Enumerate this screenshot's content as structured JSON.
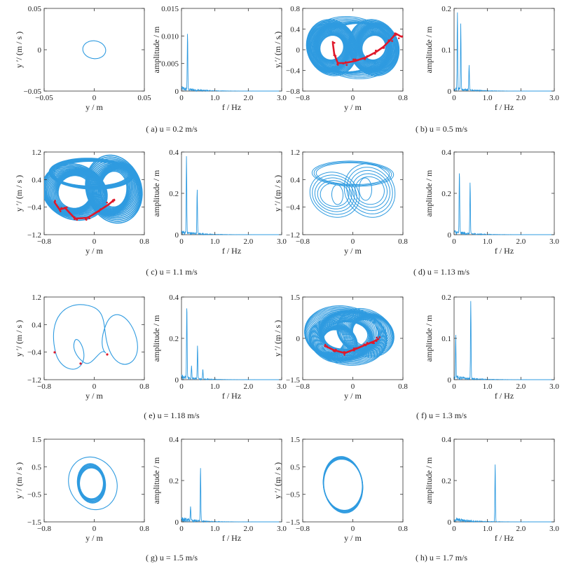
{
  "colors": {
    "trajectory": "#2f9be0",
    "section": "#e0182a",
    "axis": "#333333"
  },
  "phase_axis_labels": {
    "x": "y / m",
    "y": "y ′/ (m / s )"
  },
  "spectrum_axis_labels": {
    "x": "f / Hz",
    "y": "amplitude / m"
  },
  "panels": [
    {
      "id": "a",
      "caption": "( a)  u  =  0.2 m/s",
      "phase": {
        "xlim": [
          -0.05,
          0.05
        ],
        "ylim": [
          -0.05,
          0.05
        ],
        "xticks": [
          "−0.05",
          "0",
          "0.05"
        ],
        "yticks": [
          "0.05",
          "0",
          "−0.05"
        ]
      },
      "spectrum": {
        "xlim": [
          0,
          3
        ],
        "ylim": [
          0,
          0.015
        ],
        "xticks": [
          "0",
          "1.0",
          "2.0",
          "3.0"
        ],
        "yticks": [
          "0.015",
          "0.010",
          "0.005",
          "0"
        ]
      }
    },
    {
      "id": "b",
      "caption": "( b)  u  =  0.5 m/s",
      "phase": {
        "xlim": [
          -0.8,
          0.8
        ],
        "ylim": [
          -0.8,
          0.8
        ],
        "xticks": [
          "−0.8",
          "0",
          "0.8"
        ],
        "yticks": [
          "0.8",
          "0.4",
          "0",
          "−0.4",
          "−0.8"
        ]
      },
      "spectrum": {
        "xlim": [
          0,
          3
        ],
        "ylim": [
          0,
          0.2
        ],
        "xticks": [
          "0",
          "1.0",
          "2.0",
          "3.0"
        ],
        "yticks": [
          "0.2",
          "0.1",
          "0"
        ]
      }
    },
    {
      "id": "c",
      "caption": "( c)  u  =  1.1 m/s",
      "phase": {
        "xlim": [
          -0.8,
          0.8
        ],
        "ylim": [
          -1.2,
          1.2
        ],
        "xticks": [
          "−0.8",
          "0",
          "0.8"
        ],
        "yticks": [
          "1.2",
          "0.4",
          "−0.4",
          "−1.2"
        ]
      },
      "spectrum": {
        "xlim": [
          0,
          3
        ],
        "ylim": [
          0,
          0.4
        ],
        "xticks": [
          "0",
          "1.0",
          "2.0",
          "3.0"
        ],
        "yticks": [
          "0.4",
          "0.2",
          "0"
        ]
      }
    },
    {
      "id": "d",
      "caption": "( d)  u  =  1.13 m/s",
      "phase": {
        "xlim": [
          -0.8,
          0.8
        ],
        "ylim": [
          -1.2,
          1.2
        ],
        "xticks": [
          "−0.8",
          "0",
          "0.8"
        ],
        "yticks": [
          "1.2",
          "0.4",
          "−0.4",
          "−1.2"
        ]
      },
      "spectrum": {
        "xlim": [
          0,
          3
        ],
        "ylim": [
          0,
          0.4
        ],
        "xticks": [
          "0",
          "1.0",
          "2.0",
          "3.0"
        ],
        "yticks": [
          "0.4",
          "0.2",
          "0"
        ]
      }
    },
    {
      "id": "e",
      "caption": "( e)  u  =  1.18 m/s",
      "phase": {
        "xlim": [
          -0.8,
          0.8
        ],
        "ylim": [
          -1.2,
          1.2
        ],
        "xticks": [
          "−0.8",
          "0",
          "0.8"
        ],
        "yticks": [
          "1.2",
          "0.4",
          "−0.4",
          "−1.2"
        ]
      },
      "spectrum": {
        "xlim": [
          0,
          3
        ],
        "ylim": [
          0,
          0.4
        ],
        "xticks": [
          "0",
          "1.0",
          "2.0",
          "3.0"
        ],
        "yticks": [
          "0.4",
          "0.2",
          "0"
        ]
      }
    },
    {
      "id": "f",
      "caption": "( f)  u  =  1.3 m/s",
      "phase": {
        "xlim": [
          -0.8,
          0.8
        ],
        "ylim": [
          -1.5,
          1.5
        ],
        "xticks": [
          "−0.8",
          "0",
          "0.8"
        ],
        "yticks": [
          "1.5",
          "0",
          "−1.5"
        ]
      },
      "spectrum": {
        "xlim": [
          0,
          3
        ],
        "ylim": [
          0,
          0.2
        ],
        "xticks": [
          "0",
          "1.0",
          "2.0",
          "3.0"
        ],
        "yticks": [
          "0.2",
          "0.1",
          "0"
        ]
      }
    },
    {
      "id": "g",
      "caption": "( g)  u  =  1.5 m/s",
      "phase": {
        "xlim": [
          -0.8,
          0.8
        ],
        "ylim": [
          -1.5,
          1.5
        ],
        "xticks": [
          "−0.8",
          "0",
          "0.8"
        ],
        "yticks": [
          "1.5",
          "0.5",
          "−0.5",
          "−1.5"
        ]
      },
      "spectrum": {
        "xlim": [
          0,
          3
        ],
        "ylim": [
          0,
          0.4
        ],
        "xticks": [
          "0",
          "1.0",
          "2.0",
          "3.0"
        ],
        "yticks": [
          "0.4",
          "0.2",
          "0"
        ]
      }
    },
    {
      "id": "h",
      "caption": "( h)  u  =  1.7 m/s",
      "phase": {
        "xlim": [
          -0.8,
          0.8
        ],
        "ylim": [
          -1.5,
          1.5
        ],
        "xticks": [
          "−0.8",
          "0",
          "0.8"
        ],
        "yticks": [
          "1.5",
          "0.5",
          "−0.5",
          "−1.5"
        ]
      },
      "spectrum": {
        "xlim": [
          0,
          3
        ],
        "ylim": [
          0,
          0.4
        ],
        "xticks": [
          "0",
          "1.0",
          "2.0",
          "3.0"
        ],
        "yticks": [
          "0.4",
          "0.2",
          "0"
        ]
      }
    }
  ],
  "chart_data": [
    {
      "type": "line",
      "panel": "a-phase",
      "xlim": [
        -0.05,
        0.05
      ],
      "ylim": [
        -0.05,
        0.05
      ],
      "grid": false,
      "xlabel": "y / m",
      "ylabel": "y ′/ (m / s )",
      "series": [
        {
          "kind": "limit-cycle",
          "x": [
            0.013,
            0,
            -0.013,
            0,
            0.013
          ],
          "y": [
            0,
            0.009,
            0,
            -0.009,
            0
          ]
        }
      ]
    },
    {
      "type": "line",
      "panel": "a-spectrum",
      "xlim": [
        0,
        3
      ],
      "ylim": [
        0,
        0.015
      ],
      "grid": false,
      "xlabel": "f / Hz",
      "ylabel": "amplitude / m",
      "peaks": [
        {
          "x": 0.18,
          "y": 0.0103
        }
      ]
    },
    {
      "type": "scatter",
      "panel": "b-phase",
      "xlim": [
        -0.8,
        0.8
      ],
      "ylim": [
        -0.8,
        0.8
      ],
      "grid": false,
      "xlabel": "y / m",
      "ylabel": "y ′/ (m / s )",
      "attractor": "chaotic double-well"
    },
    {
      "type": "line",
      "panel": "b-spectrum",
      "xlim": [
        0,
        3
      ],
      "ylim": [
        0,
        0.2
      ],
      "grid": false,
      "xlabel": "f / Hz",
      "ylabel": "amplitude / m",
      "peaks": [
        {
          "x": 0.1,
          "y": 0.19
        },
        {
          "x": 0.2,
          "y": 0.16
        },
        {
          "x": 0.45,
          "y": 0.06
        }
      ]
    },
    {
      "type": "scatter",
      "panel": "c-phase",
      "xlim": [
        -0.8,
        0.8
      ],
      "ylim": [
        -1.2,
        1.2
      ],
      "grid": false,
      "xlabel": "y / m",
      "ylabel": "y ′/ (m / s )",
      "attractor": "chaotic"
    },
    {
      "type": "line",
      "panel": "c-spectrum",
      "xlim": [
        0,
        3
      ],
      "ylim": [
        0,
        0.4
      ],
      "grid": false,
      "xlabel": "f / Hz",
      "ylabel": "amplitude / m",
      "peaks": [
        {
          "x": 0.15,
          "y": 0.37
        },
        {
          "x": 0.47,
          "y": 0.22
        }
      ]
    },
    {
      "type": "line",
      "panel": "d-phase",
      "xlim": [
        -0.8,
        0.8
      ],
      "ylim": [
        -1.2,
        1.2
      ],
      "grid": false,
      "xlabel": "y / m",
      "ylabel": "y ′/ (m / s )",
      "attractor": "periodic multi-loop"
    },
    {
      "type": "line",
      "panel": "d-spectrum",
      "xlim": [
        0,
        3
      ],
      "ylim": [
        0,
        0.4
      ],
      "grid": false,
      "xlabel": "f / Hz",
      "ylabel": "amplitude / m",
      "peaks": [
        {
          "x": 0.16,
          "y": 0.3
        },
        {
          "x": 0.48,
          "y": 0.25
        }
      ]
    },
    {
      "type": "line",
      "panel": "e-phase",
      "xlim": [
        -0.8,
        0.8
      ],
      "ylim": [
        -1.2,
        1.2
      ],
      "grid": false,
      "xlabel": "y / m",
      "ylabel": "y ′/ (m / s )",
      "attractor": "periodic"
    },
    {
      "type": "line",
      "panel": "e-spectrum",
      "xlim": [
        0,
        3
      ],
      "ylim": [
        0,
        0.4
      ],
      "grid": false,
      "xlabel": "f / Hz",
      "ylabel": "amplitude / m",
      "peaks": [
        {
          "x": 0.16,
          "y": 0.36
        },
        {
          "x": 0.48,
          "y": 0.16
        },
        {
          "x": 0.3,
          "y": 0.06
        },
        {
          "x": 0.64,
          "y": 0.05
        }
      ]
    },
    {
      "type": "scatter",
      "panel": "f-phase",
      "xlim": [
        -0.8,
        0.8
      ],
      "ylim": [
        -1.5,
        1.5
      ],
      "grid": false,
      "xlabel": "y / m",
      "ylabel": "y ′/ (m / s )",
      "attractor": "chaotic"
    },
    {
      "type": "line",
      "panel": "f-spectrum",
      "xlim": [
        0,
        3
      ],
      "ylim": [
        0,
        0.2
      ],
      "grid": false,
      "xlabel": "f / Hz",
      "ylabel": "amplitude / m",
      "peaks": [
        {
          "x": 0.05,
          "y": 0.1
        },
        {
          "x": 0.5,
          "y": 0.19
        }
      ]
    },
    {
      "type": "line",
      "panel": "g-phase",
      "xlim": [
        -0.8,
        0.8
      ],
      "ylim": [
        -1.5,
        1.5
      ],
      "grid": false,
      "xlabel": "y / m",
      "ylabel": "y ′/ (m / s )",
      "attractor": "limit cycle"
    },
    {
      "type": "line",
      "panel": "g-spectrum",
      "xlim": [
        0,
        3
      ],
      "ylim": [
        0,
        0.4
      ],
      "grid": false,
      "xlabel": "f / Hz",
      "ylabel": "amplitude / m",
      "peaks": [
        {
          "x": 0.27,
          "y": 0.07
        },
        {
          "x": 0.57,
          "y": 0.26
        }
      ]
    },
    {
      "type": "line",
      "panel": "h-phase",
      "xlim": [
        -0.8,
        0.8
      ],
      "ylim": [
        -1.5,
        1.5
      ],
      "grid": false,
      "xlabel": "y / m",
      "ylabel": "y ′/ (m / s )",
      "attractor": "limit cycle"
    },
    {
      "type": "line",
      "panel": "h-spectrum",
      "xlim": [
        0,
        3
      ],
      "ylim": [
        0,
        0.4
      ],
      "grid": false,
      "xlabel": "f / Hz",
      "ylabel": "amplitude / m",
      "peaks": [
        {
          "x": 1.23,
          "y": 0.28
        }
      ]
    }
  ]
}
